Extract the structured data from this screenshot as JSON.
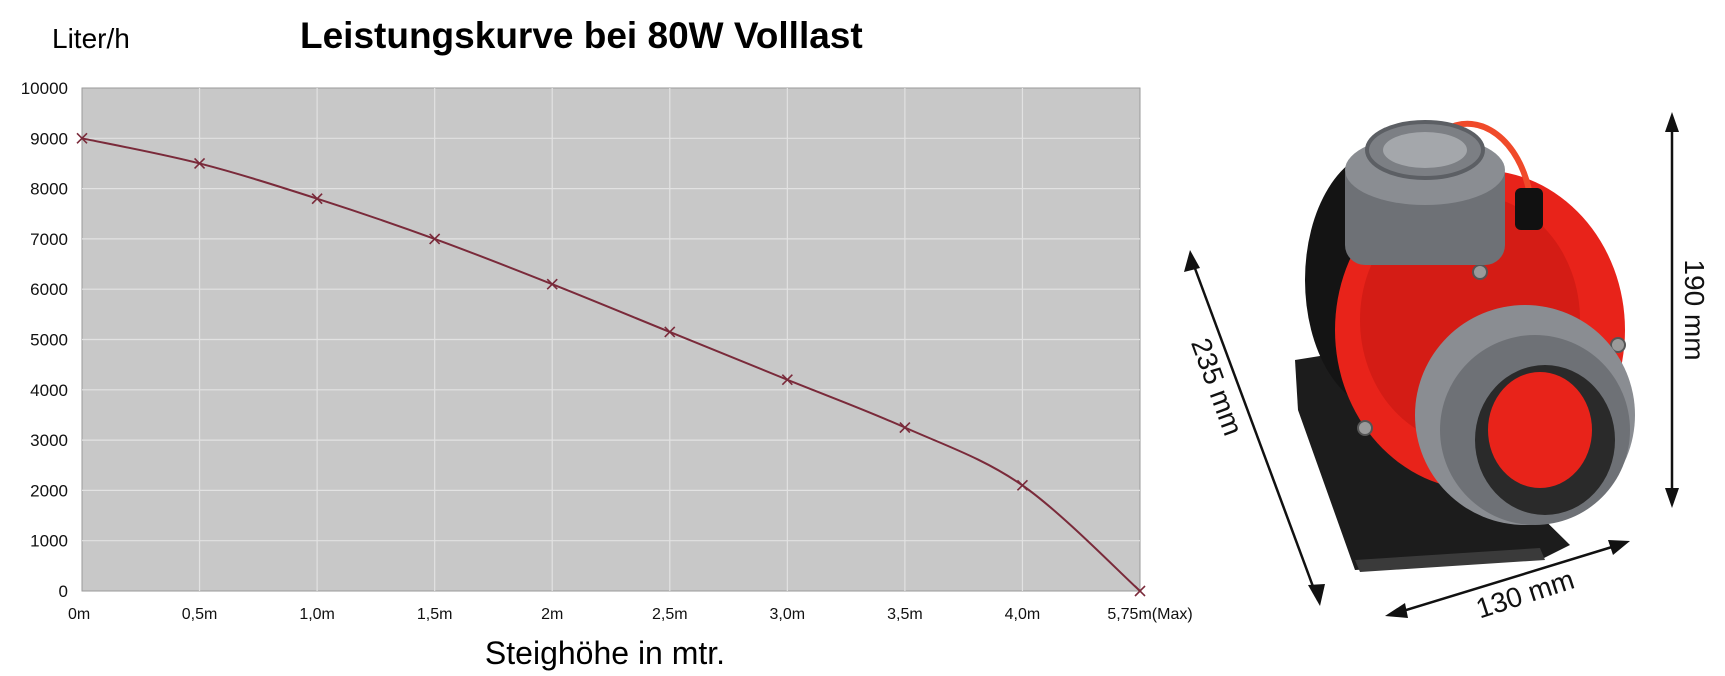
{
  "chart_data": {
    "type": "line",
    "title": "Leistungskurve bei 80W Volllast",
    "ylabel": "Liter/h",
    "xlabel": "Steighöhe in mtr.",
    "categories": [
      "0m",
      "0,5m",
      "1,0m",
      "1,5m",
      "2m",
      "2,5m",
      "3,0m",
      "3,5m",
      "4,0m",
      "5,75m(Max)"
    ],
    "series": [
      {
        "values": [
          9000,
          8500,
          7800,
          7000,
          6100,
          5150,
          4200,
          3250,
          2100,
          0
        ]
      }
    ],
    "ylim": [
      0,
      10000
    ],
    "yticks": [
      0,
      1000,
      2000,
      3000,
      4000,
      5000,
      6000,
      7000,
      8000,
      9000,
      10000
    ],
    "grid": true,
    "colors": {
      "line": "#7a2a3a",
      "plot_bg": "#c8c8c8",
      "grid": "#e2e2e2"
    }
  },
  "product": {
    "name": "pump-illustration",
    "dimensions": {
      "depth": "235 mm",
      "width": "130 mm",
      "height": "190 mm"
    },
    "colors": {
      "body": "#e8231a",
      "dark": "#1a1a1a",
      "grey": "#6e7176"
    }
  }
}
